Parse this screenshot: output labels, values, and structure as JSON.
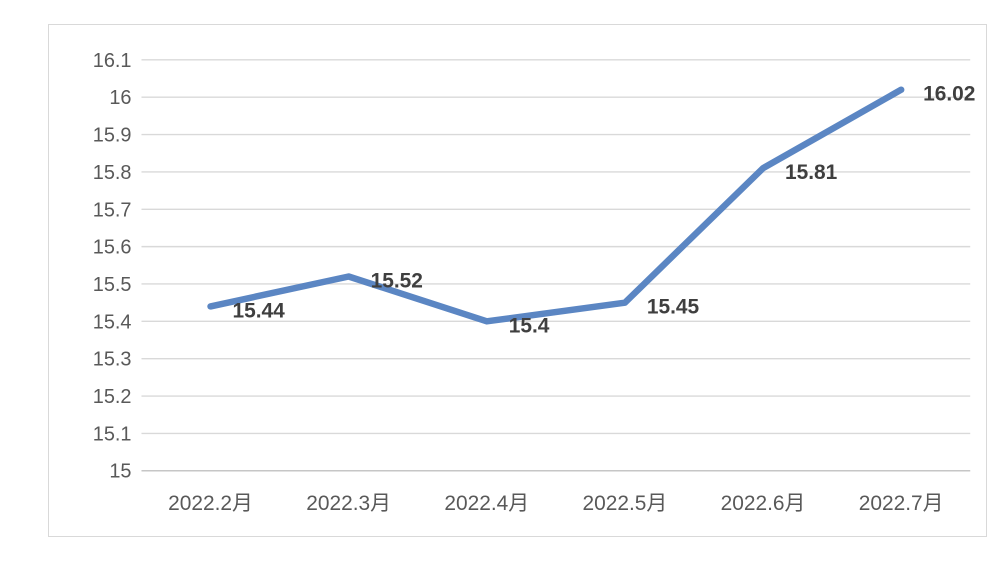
{
  "chart": {
    "background": "#FFFFFF",
    "border_color": "#D9D9D9"
  },
  "chart_data": {
    "type": "line",
    "title": "",
    "xlabel": "",
    "ylabel": "",
    "categories": [
      "2022.2月",
      "2022.3月",
      "2022.4月",
      "2022.5月",
      "2022.6月",
      "2022.7月"
    ],
    "values": [
      15.44,
      15.52,
      15.4,
      15.45,
      15.81,
      16.02
    ],
    "data_labels": [
      "15.44",
      "15.52",
      "15.4",
      "15.45",
      "15.81",
      "16.02"
    ],
    "data_label_position": "right",
    "ylim": [
      15,
      16.1
    ],
    "ytick_step": 0.1,
    "ytick_labels": [
      "15",
      "15.1",
      "15.2",
      "15.3",
      "15.4",
      "15.5",
      "15.6",
      "15.7",
      "15.8",
      "15.9",
      "16",
      "16.1"
    ],
    "grid": true,
    "legend": false,
    "line_color": "#5B86C3",
    "gridline_color": "#D9D9D9",
    "bottom_gridline_color": "#C6C6C6",
    "axis_text_color": "#595959",
    "data_label_color": "#3F3F3F"
  }
}
